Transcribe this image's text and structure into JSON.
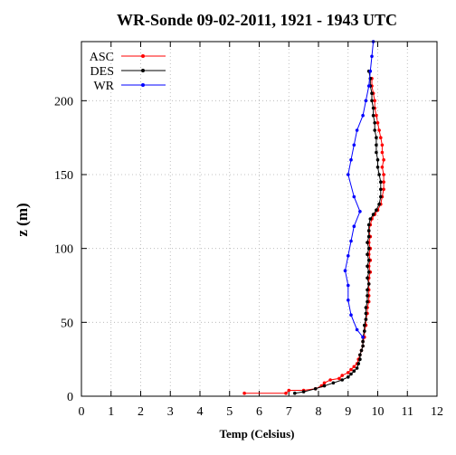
{
  "chart_data": {
    "type": "line",
    "title": "WR-Sonde 09-02-2011, 1921 - 1943 UTC",
    "xlabel": "Temp (Celsius)",
    "ylabel": "z (m)",
    "xlim": [
      0,
      12
    ],
    "ylim": [
      0,
      240
    ],
    "xticks": [
      "0",
      "1",
      "2",
      "3",
      "4",
      "5",
      "6",
      "7",
      "8",
      "9",
      "10",
      "11",
      "12"
    ],
    "yticks": [
      "0",
      "50",
      "100",
      "150",
      "200"
    ],
    "grid": true,
    "legend_position": "top-left",
    "series": [
      {
        "name": "ASC",
        "color": "#ff0000",
        "points": [
          [
            5.5,
            2
          ],
          [
            6.9,
            2
          ],
          [
            7.0,
            4
          ],
          [
            7.5,
            4
          ],
          [
            7.9,
            5
          ],
          [
            8.1,
            7
          ],
          [
            8.2,
            9
          ],
          [
            8.4,
            11
          ],
          [
            8.7,
            12
          ],
          [
            8.8,
            14
          ],
          [
            9.0,
            16
          ],
          [
            9.1,
            18
          ],
          [
            9.2,
            20
          ],
          [
            9.3,
            22
          ],
          [
            9.35,
            25
          ],
          [
            9.4,
            28
          ],
          [
            9.45,
            31
          ],
          [
            9.5,
            34
          ],
          [
            9.5,
            37
          ],
          [
            9.55,
            40
          ],
          [
            9.55,
            44
          ],
          [
            9.6,
            48
          ],
          [
            9.6,
            52
          ],
          [
            9.65,
            56
          ],
          [
            9.65,
            60
          ],
          [
            9.7,
            64
          ],
          [
            9.7,
            68
          ],
          [
            9.7,
            72
          ],
          [
            9.7,
            76
          ],
          [
            9.7,
            80
          ],
          [
            9.75,
            84
          ],
          [
            9.7,
            88
          ],
          [
            9.75,
            92
          ],
          [
            9.7,
            96
          ],
          [
            9.75,
            100
          ],
          [
            9.7,
            104
          ],
          [
            9.75,
            108
          ],
          [
            9.7,
            112
          ],
          [
            9.75,
            116
          ],
          [
            9.8,
            120
          ],
          [
            9.9,
            123
          ],
          [
            10.0,
            126
          ],
          [
            10.1,
            130
          ],
          [
            10.15,
            135
          ],
          [
            10.2,
            140
          ],
          [
            10.2,
            145
          ],
          [
            10.2,
            150
          ],
          [
            10.15,
            155
          ],
          [
            10.2,
            160
          ],
          [
            10.15,
            165
          ],
          [
            10.15,
            170
          ],
          [
            10.1,
            175
          ],
          [
            10.05,
            180
          ],
          [
            10.0,
            185
          ],
          [
            9.95,
            190
          ],
          [
            9.9,
            195
          ],
          [
            9.9,
            200
          ],
          [
            9.85,
            205
          ],
          [
            9.8,
            210
          ],
          [
            9.8,
            215
          ]
        ]
      },
      {
        "name": "DES",
        "color": "#000000",
        "points": [
          [
            7.2,
            2
          ],
          [
            7.5,
            3
          ],
          [
            7.9,
            5
          ],
          [
            8.2,
            7
          ],
          [
            8.5,
            9
          ],
          [
            8.8,
            11
          ],
          [
            9.0,
            13
          ],
          [
            9.1,
            15
          ],
          [
            9.2,
            17
          ],
          [
            9.3,
            19
          ],
          [
            9.35,
            22
          ],
          [
            9.4,
            25
          ],
          [
            9.4,
            28
          ],
          [
            9.45,
            31
          ],
          [
            9.5,
            34
          ],
          [
            9.5,
            37
          ],
          [
            9.5,
            40
          ],
          [
            9.55,
            44
          ],
          [
            9.55,
            48
          ],
          [
            9.6,
            52
          ],
          [
            9.6,
            56
          ],
          [
            9.6,
            60
          ],
          [
            9.65,
            64
          ],
          [
            9.65,
            68
          ],
          [
            9.65,
            72
          ],
          [
            9.7,
            76
          ],
          [
            9.65,
            80
          ],
          [
            9.7,
            84
          ],
          [
            9.65,
            88
          ],
          [
            9.7,
            92
          ],
          [
            9.65,
            96
          ],
          [
            9.7,
            100
          ],
          [
            9.65,
            104
          ],
          [
            9.7,
            108
          ],
          [
            9.7,
            112
          ],
          [
            9.7,
            116
          ],
          [
            9.75,
            120
          ],
          [
            9.85,
            123
          ],
          [
            9.95,
            126
          ],
          [
            10.05,
            130
          ],
          [
            10.1,
            135
          ],
          [
            10.1,
            140
          ],
          [
            10.1,
            145
          ],
          [
            10.05,
            150
          ],
          [
            10.0,
            155
          ],
          [
            10.0,
            160
          ],
          [
            9.95,
            165
          ],
          [
            9.95,
            170
          ],
          [
            9.95,
            175
          ],
          [
            9.9,
            180
          ],
          [
            9.9,
            185
          ],
          [
            9.85,
            190
          ],
          [
            9.85,
            195
          ],
          [
            9.8,
            200
          ],
          [
            9.8,
            205
          ],
          [
            9.75,
            210
          ],
          [
            9.75,
            215
          ],
          [
            9.7,
            220
          ]
        ]
      },
      {
        "name": "WR",
        "color": "#0000ff",
        "points": [
          [
            9.5,
            40
          ],
          [
            9.3,
            45
          ],
          [
            9.1,
            55
          ],
          [
            9.0,
            65
          ],
          [
            9.0,
            75
          ],
          [
            8.9,
            85
          ],
          [
            9.0,
            95
          ],
          [
            9.1,
            105
          ],
          [
            9.2,
            115
          ],
          [
            9.4,
            125
          ],
          [
            9.2,
            135
          ],
          [
            9.0,
            150
          ],
          [
            9.1,
            160
          ],
          [
            9.2,
            170
          ],
          [
            9.3,
            180
          ],
          [
            9.5,
            190
          ],
          [
            9.6,
            200
          ],
          [
            9.7,
            210
          ],
          [
            9.75,
            220
          ],
          [
            9.8,
            230
          ],
          [
            9.85,
            240
          ]
        ]
      }
    ]
  }
}
